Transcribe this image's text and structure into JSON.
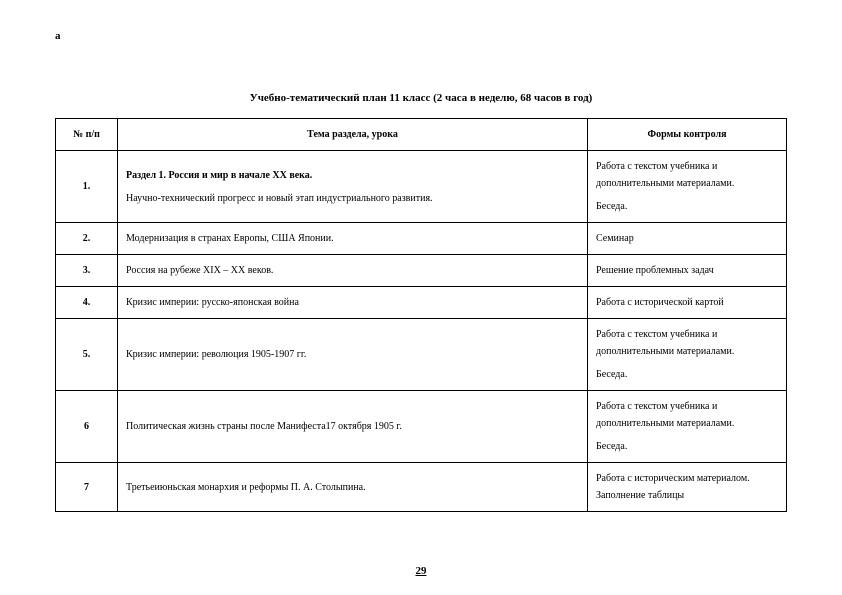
{
  "corner_mark": "а",
  "title": "Учебно-тематический план 11 класс  (2 часа в неделю, 68 часов в год)",
  "headers": {
    "num": "№ п/п",
    "topic": "Тема раздела, урока",
    "control": "Формы контроля"
  },
  "rows": [
    {
      "num": "1.",
      "section_head": "Раздел 1. Россия и мир в начале XX века.",
      "topic": "Научно-технический прогресс и новый этап индустриального развития.",
      "control_1": "Работа с текстом учебника и дополнительными материалами.",
      "control_2": "Беседа."
    },
    {
      "num": "2.",
      "topic": "Модернизация в странах Европы, США Японии.",
      "control_1": "Семинар"
    },
    {
      "num": "3.",
      "topic": "Россия на рубеже XIX – XX веков.",
      "control_1": "Решение проблемных задач"
    },
    {
      "num": "4.",
      "topic": "Кризис империи: русско-японская война",
      "control_1": "Работа с исторической картой"
    },
    {
      "num": "5.",
      "topic": "Кризис империи: революция 1905-1907 гг.",
      "control_1": "Работа с текстом учебника и дополнительными материалами.",
      "control_2": "Беседа."
    },
    {
      "num": "6",
      "topic": "Политическая жизнь страны после Манифеста17 октября 1905 г.",
      "control_1": "Работа с текстом учебника и дополнительными материалами.",
      "control_2": "Беседа."
    },
    {
      "num": "7",
      "topic": "Третьеиюньская монархия и реформы П. А. Столыпина.",
      "control_1": "Работа с историческим материалом. Заполнение таблицы"
    }
  ],
  "page_number": "29"
}
